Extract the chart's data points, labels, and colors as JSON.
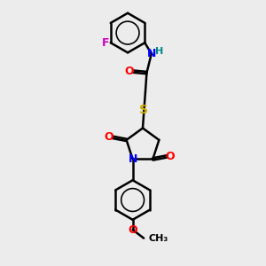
{
  "bg_color": "#ececec",
  "bond_color": "#000000",
  "bond_width": 1.8,
  "atom_colors": {
    "N": "#0000ff",
    "O": "#ff0000",
    "S": "#ccaa00",
    "F": "#cc00cc",
    "H": "#008888",
    "C": "#000000"
  },
  "font_size": 9,
  "figsize": [
    3.0,
    3.0
  ],
  "dpi": 100
}
